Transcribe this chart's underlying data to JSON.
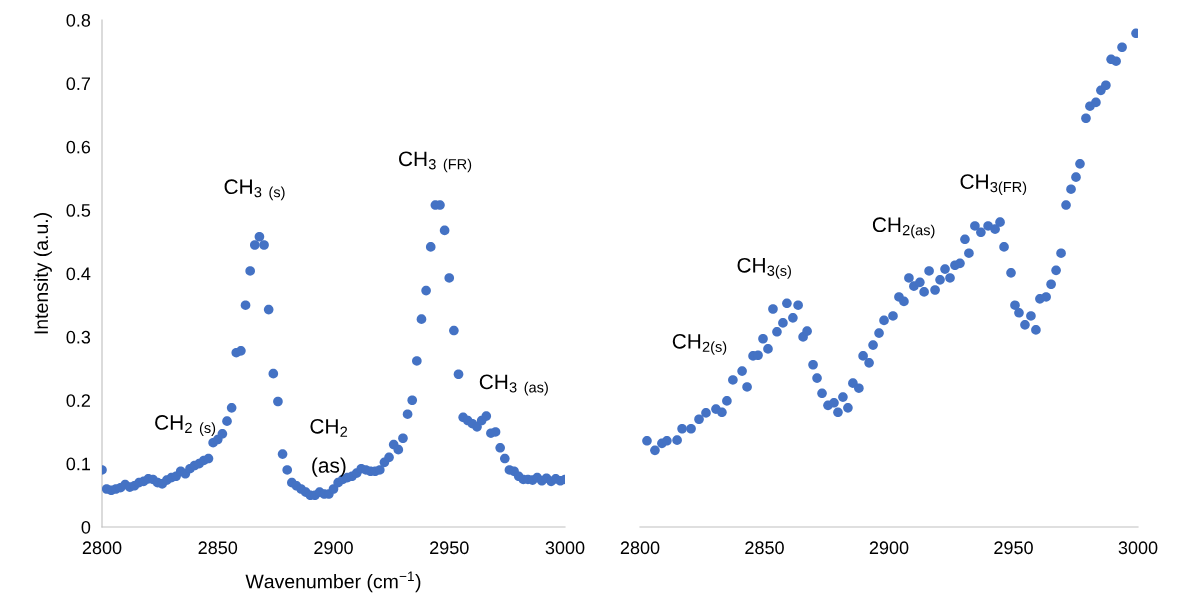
{
  "chart_data": [
    {
      "type": "scatter",
      "xlabel": "Wavenumber (cm$^{−1}$)",
      "ylabel": "Intensity (a.u.)",
      "xlim": [
        2800,
        3000
      ],
      "xticks": [
        2800,
        2850,
        2900,
        2950,
        3000
      ],
      "ylim": [
        0,
        0.8
      ],
      "yticks": [
        0,
        0.1,
        0.2,
        0.3,
        0.4,
        0.5,
        0.6,
        0.7,
        0.8
      ],
      "marker": "circle",
      "series": [
        {
          "color": "#4472c4",
          "x": [
            2800,
            2802,
            2804,
            2806,
            2808,
            2810,
            2812,
            2814,
            2816,
            2818,
            2820,
            2822,
            2824,
            2826,
            2828,
            2830,
            2832,
            2834,
            2836,
            2838,
            2840,
            2842,
            2844,
            2846,
            2848,
            2850,
            2852,
            2854,
            2856,
            2858,
            2860,
            2862,
            2864,
            2866,
            2868,
            2870,
            2872,
            2874,
            2876,
            2878,
            2880,
            2882,
            2884,
            2886,
            2888,
            2890,
            2892,
            2894,
            2896,
            2898,
            2900,
            2902,
            2904,
            2906,
            2908,
            2910,
            2912,
            2914,
            2916,
            2918,
            2920,
            2922,
            2924,
            2926,
            2928,
            2930,
            2932,
            2934,
            2936,
            2938,
            2940,
            2942,
            2944,
            2946,
            2948,
            2950,
            2952,
            2954,
            2956,
            2958,
            2960,
            2962,
            2964,
            2966,
            2968,
            2970,
            2972,
            2974,
            2976,
            2978,
            2980,
            2982,
            2984,
            2986,
            2988,
            2990,
            2992,
            2994,
            2996,
            2998,
            3000
          ],
          "values": [
            0.09,
            0.06,
            0.058,
            0.06,
            0.062,
            0.067,
            0.063,
            0.065,
            0.07,
            0.072,
            0.076,
            0.075,
            0.07,
            0.068,
            0.074,
            0.078,
            0.08,
            0.088,
            0.084,
            0.092,
            0.097,
            0.1,
            0.105,
            0.108,
            0.133,
            0.138,
            0.147,
            0.167,
            0.188,
            0.275,
            0.278,
            0.35,
            0.404,
            0.445,
            0.458,
            0.445,
            0.343,
            0.242,
            0.198,
            0.115,
            0.09,
            0.07,
            0.065,
            0.06,
            0.055,
            0.05,
            0.05,
            0.055,
            0.052,
            0.052,
            0.06,
            0.07,
            0.075,
            0.078,
            0.08,
            0.085,
            0.092,
            0.09,
            0.088,
            0.088,
            0.09,
            0.102,
            0.11,
            0.13,
            0.122,
            0.14,
            0.178,
            0.2,
            0.262,
            0.328,
            0.373,
            0.442,
            0.508,
            0.508,
            0.468,
            0.393,
            0.31,
            0.241,
            0.173,
            0.168,
            0.163,
            0.158,
            0.168,
            0.175,
            0.148,
            0.15,
            0.125,
            0.108,
            0.09,
            0.088,
            0.08,
            0.075,
            0.075,
            0.074,
            0.078,
            0.073,
            0.077,
            0.072,
            0.076,
            0.073,
            0.075
          ]
        }
      ],
      "annotations": [
        "CH$_{2}$ $_{(s)}$",
        "CH$_{3}$ $_{(s)}$",
        "CH$_{2}$",
        "(as)",
        "CH$_{3}$ $_{(FR)}$",
        "CH$_{3}$ $_{(as)}$"
      ]
    },
    {
      "type": "scatter",
      "xlim": [
        2800,
        3000
      ],
      "xticks": [
        2800,
        2850,
        2900,
        2950,
        3000
      ],
      "ylim": [
        0,
        0.8
      ],
      "tick_labels": "x",
      "marker": "circle",
      "series": [
        {
          "color": "#4472c4",
          "x": [
            2802.8,
            2806.0,
            2808.8,
            2810.8,
            2814.9,
            2816.9,
            2820.5,
            2823.7,
            2826.5,
            2830.5,
            2832.9,
            2834.9,
            2837.3,
            2841.0,
            2843.0,
            2845.4,
            2847.4,
            2849.4,
            2851.4,
            2853.4,
            2855.0,
            2857.4,
            2859.0,
            2861.4,
            2863.5,
            2865.5,
            2867.1,
            2869.5,
            2871.1,
            2873.1,
            2875.5,
            2877.9,
            2879.5,
            2881.5,
            2883.5,
            2885.5,
            2887.9,
            2889.6,
            2892.0,
            2893.6,
            2896.0,
            2898.0,
            2901.6,
            2904.0,
            2906.0,
            2908.0,
            2910.0,
            2912.4,
            2914.1,
            2916.1,
            2918.5,
            2920.5,
            2922.5,
            2924.5,
            2926.5,
            2928.5,
            2930.5,
            2932.1,
            2934.5,
            2936.9,
            2939.8,
            2942.6,
            2944.6,
            2946.2,
            2949.0,
            2950.6,
            2952.2,
            2954.6,
            2957.0,
            2959.0,
            2960.6,
            2963.1,
            2965.1,
            2967.1,
            2969.1,
            2971.1,
            2973.1,
            2975.1,
            2976.7,
            2979.1,
            2980.7,
            2983.1,
            2985.1,
            2987.1,
            2989.2,
            2991.2,
            2993.6,
            2999.2
          ],
          "values": [
            0.136,
            0.121,
            0.132,
            0.136,
            0.137,
            0.155,
            0.155,
            0.17,
            0.18,
            0.186,
            0.181,
            0.199,
            0.232,
            0.246,
            0.221,
            0.27,
            0.271,
            0.297,
            0.281,
            0.344,
            0.308,
            0.322,
            0.353,
            0.33,
            0.35,
            0.3,
            0.309,
            0.256,
            0.235,
            0.211,
            0.192,
            0.196,
            0.181,
            0.205,
            0.188,
            0.227,
            0.219,
            0.27,
            0.259,
            0.287,
            0.306,
            0.326,
            0.333,
            0.363,
            0.356,
            0.393,
            0.38,
            0.386,
            0.371,
            0.404,
            0.374,
            0.39,
            0.407,
            0.393,
            0.413,
            0.416,
            0.454,
            0.432,
            0.475,
            0.465,
            0.475,
            0.47,
            0.481,
            0.442,
            0.401,
            0.35,
            0.338,
            0.319,
            0.333,
            0.311,
            0.36,
            0.363,
            0.383,
            0.405,
            0.432,
            0.508,
            0.533,
            0.552,
            0.573,
            0.645,
            0.664,
            0.67,
            0.689,
            0.697,
            0.738,
            0.735,
            0.757,
            0.779
          ]
        }
      ],
      "annotations": [
        "CH$_{2(s)}$",
        "CH$_{3(s)}$",
        "CH$_{2(as)}$",
        "CH$_{3(FR)}$"
      ]
    }
  ]
}
